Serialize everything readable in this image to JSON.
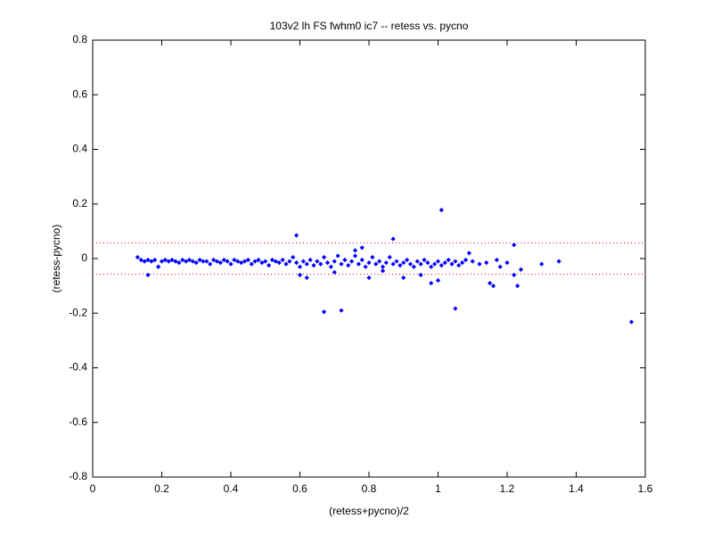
{
  "chart_data": {
    "type": "scatter",
    "title": "103v2 lh FS fwhm0 ic7 -- retess vs. pycno",
    "x_label": "(retess+pycno)/2",
    "y_label": "(retess-pycno)",
    "color": "#0000ff",
    "x": [
      0.13,
      0.14,
      0.15,
      0.16,
      0.17,
      0.18,
      0.19,
      0.2,
      0.21,
      0.22,
      0.23,
      0.24,
      0.25,
      0.26,
      0.27,
      0.28,
      0.29,
      0.3,
      0.31,
      0.32,
      0.33,
      0.34,
      0.35,
      0.36,
      0.37,
      0.38,
      0.39,
      0.4,
      0.41,
      0.42,
      0.43,
      0.44,
      0.45,
      0.46,
      0.47,
      0.48,
      0.49,
      0.5,
      0.51,
      0.52,
      0.53,
      0.54,
      0.55,
      0.56,
      0.57,
      0.58,
      0.59,
      0.6,
      0.61,
      0.62,
      0.63,
      0.64,
      0.65,
      0.66,
      0.67,
      0.68,
      0.69,
      0.7,
      0.71,
      0.72,
      0.73,
      0.74,
      0.75,
      0.76,
      0.77,
      0.78,
      0.79,
      0.8,
      0.81,
      0.82,
      0.83,
      0.84,
      0.85,
      0.86,
      0.87,
      0.88,
      0.89,
      0.9,
      0.91,
      0.92,
      0.93,
      0.94,
      0.95,
      0.96,
      0.97,
      0.98,
      0.99,
      1.0,
      1.01,
      1.02,
      1.03,
      1.04,
      1.05,
      1.06,
      1.07,
      1.08,
      1.1,
      1.12,
      1.14,
      1.17,
      1.18,
      1.01,
      0.59,
      0.87,
      1.22,
      0.67,
      0.72,
      1.05,
      1.56,
      1.35,
      1.3,
      1.23,
      1.24,
      1.22,
      1.15,
      1.16,
      0.16,
      0.19,
      0.78,
      0.76,
      0.6,
      0.62,
      0.8,
      0.9,
      0.98,
      1.0,
      0.95,
      0.84,
      0.7,
      1.09,
      1.2
    ],
    "y": [
      0.005,
      -0.005,
      -0.01,
      -0.005,
      -0.01,
      -0.005,
      -0.03,
      -0.01,
      -0.005,
      -0.01,
      -0.005,
      -0.01,
      -0.015,
      -0.005,
      -0.01,
      -0.005,
      -0.01,
      -0.015,
      -0.005,
      -0.01,
      -0.01,
      -0.02,
      -0.005,
      -0.01,
      -0.015,
      -0.005,
      -0.01,
      -0.02,
      -0.005,
      -0.01,
      -0.015,
      -0.01,
      -0.005,
      -0.02,
      -0.01,
      -0.005,
      -0.015,
      -0.01,
      -0.025,
      -0.005,
      -0.01,
      -0.015,
      -0.005,
      -0.02,
      -0.01,
      0.005,
      -0.015,
      -0.03,
      -0.01,
      -0.02,
      -0.005,
      -0.025,
      -0.01,
      -0.02,
      0.005,
      -0.015,
      -0.03,
      -0.01,
      0.01,
      -0.02,
      -0.005,
      -0.025,
      -0.01,
      0.01,
      -0.02,
      -0.005,
      -0.03,
      -0.015,
      0.005,
      -0.02,
      -0.01,
      -0.03,
      -0.015,
      0.005,
      -0.02,
      -0.01,
      -0.025,
      -0.015,
      -0.005,
      -0.02,
      -0.03,
      -0.01,
      -0.02,
      -0.005,
      -0.015,
      -0.03,
      -0.02,
      -0.01,
      -0.025,
      -0.015,
      -0.005,
      -0.02,
      -0.01,
      -0.025,
      -0.015,
      -0.005,
      -0.01,
      -0.02,
      -0.015,
      -0.005,
      -0.03,
      0.178,
      0.085,
      0.072,
      0.05,
      -0.195,
      -0.19,
      -0.183,
      -0.232,
      -0.01,
      -0.02,
      -0.1,
      -0.04,
      -0.06,
      -0.09,
      -0.1,
      -0.06,
      -0.03,
      0.04,
      0.03,
      -0.06,
      -0.07,
      -0.07,
      -0.07,
      -0.09,
      -0.08,
      -0.06,
      -0.045,
      -0.05,
      0.02,
      -0.015
    ],
    "reference_lines": [
      {
        "value": 0.057,
        "color": "#ff0000"
      },
      {
        "value": -0.057,
        "color": "#ff0000"
      }
    ],
    "xlim": [
      0,
      1.6
    ],
    "xticks": [
      0,
      0.2,
      0.4,
      0.6,
      0.8,
      1,
      1.2,
      1.4,
      1.6
    ],
    "ylim": [
      -0.8,
      0.8
    ],
    "yticks": [
      -0.8,
      -0.6,
      -0.4,
      -0.2,
      0,
      0.2,
      0.4,
      0.6,
      0.8
    ]
  }
}
